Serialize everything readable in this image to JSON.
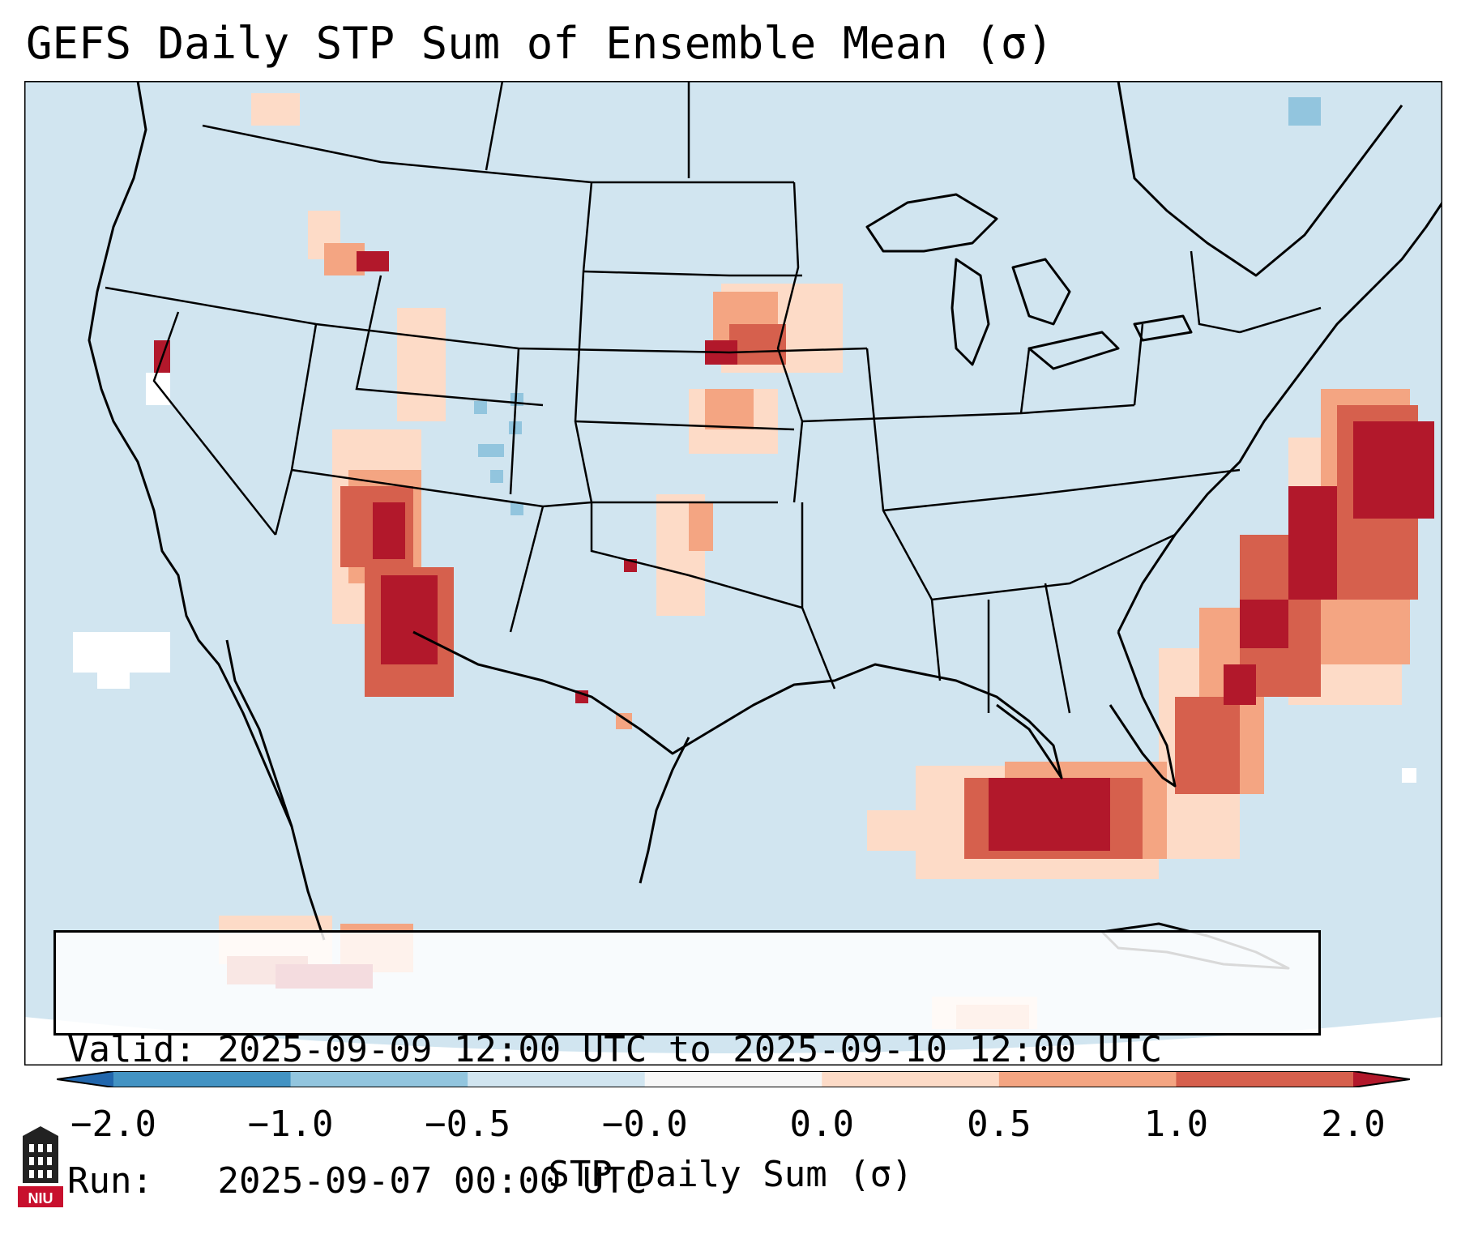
{
  "title": "GEFS Daily STP Sum of Ensemble Mean (σ)",
  "info": {
    "valid_label": "Valid:",
    "valid_value": "2025-09-09 12:00 UTC to 2025-09-10 12:00 UTC",
    "run_label": "Run:",
    "run_value": "2025-09-07 00:00 UTC"
  },
  "colorbar": {
    "label": "STP Daily Sum (σ)",
    "ticks": [
      "−2.0",
      "−1.0",
      "−0.5",
      "−0.0",
      "0.0",
      "0.5",
      "1.0",
      "2.0"
    ],
    "bins": [
      {
        "color": "#4393c3"
      },
      {
        "color": "#92c5de"
      },
      {
        "color": "#d1e5f0"
      },
      {
        "color": "#f7f7f7"
      },
      {
        "color": "#fddbc7"
      },
      {
        "color": "#f4a582"
      },
      {
        "color": "#d6604d"
      }
    ],
    "extend_low_color": "#2166ac",
    "extend_high_color": "#b2182b"
  },
  "map": {
    "background_color": "#d1e5f0",
    "region": "Contiguous United States"
  },
  "logo": {
    "text": "NIU",
    "icon": "university-tower-icon",
    "color": "#c8102e"
  }
}
